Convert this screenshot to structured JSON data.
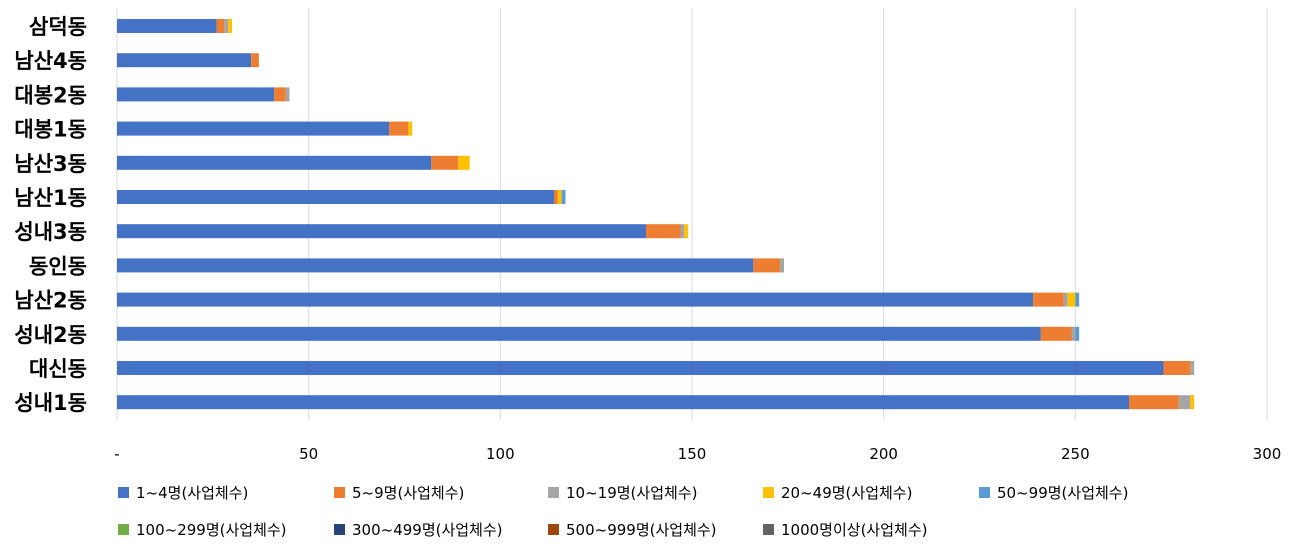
{
  "chart_data": {
    "type": "bar",
    "orientation": "horizontal",
    "stacked": true,
    "categories": [
      "삼덕동",
      "남산4동",
      "대봉2동",
      "대봉1동",
      "남산3동",
      "남산1동",
      "성내3동",
      "동인동",
      "남산2동",
      "성내2동",
      "대신동",
      "성내1동"
    ],
    "xlim": [
      0,
      300
    ],
    "x_ticks": [
      "-",
      "50",
      "100",
      "150",
      "200",
      "250",
      "300"
    ],
    "grid": true,
    "legend_position": "bottom",
    "series": [
      {
        "name": "1~4명(사업체수)",
        "color": "#4472C4",
        "values": [
          26,
          35,
          41,
          71,
          82,
          114,
          138,
          166,
          239,
          241,
          273,
          264
        ]
      },
      {
        "name": "5~9명(사업체수)",
        "color": "#ED7D31",
        "values": [
          2,
          2,
          3,
          5,
          7,
          1,
          9,
          7,
          8,
          8,
          7,
          13
        ]
      },
      {
        "name": "10~19명(사업체수)",
        "color": "#A5A5A5",
        "values": [
          1,
          0,
          1,
          0,
          0,
          0,
          1,
          1,
          1,
          1,
          1,
          3
        ]
      },
      {
        "name": "20~49명(사업체수)",
        "color": "#FFC000",
        "values": [
          1,
          0,
          0,
          1,
          3,
          1,
          1,
          0,
          2,
          0,
          0,
          1
        ]
      },
      {
        "name": "50~99명(사업체수)",
        "color": "#5B9BD5",
        "values": [
          0,
          0,
          0,
          0,
          0,
          1,
          0,
          0,
          1,
          1,
          0,
          0
        ]
      },
      {
        "name": "100~299명(사업체수)",
        "color": "#70AD47",
        "values": [
          0,
          0,
          0,
          0,
          0,
          0,
          0,
          0,
          0,
          0,
          0,
          0
        ]
      },
      {
        "name": "300~499명(사업체수)",
        "color": "#264478",
        "values": [
          0,
          0,
          0,
          0,
          0,
          0,
          0,
          0,
          0,
          0,
          0,
          0
        ]
      },
      {
        "name": "500~999명(사업체수)",
        "color": "#9E480E",
        "values": [
          0,
          0,
          0,
          0,
          0,
          0,
          0,
          0,
          0,
          0,
          0,
          0
        ]
      },
      {
        "name": "1000명이상(사업체수)",
        "color": "#636363",
        "values": [
          0,
          0,
          0,
          0,
          0,
          0,
          0,
          0,
          0,
          0,
          0,
          0
        ]
      }
    ]
  }
}
